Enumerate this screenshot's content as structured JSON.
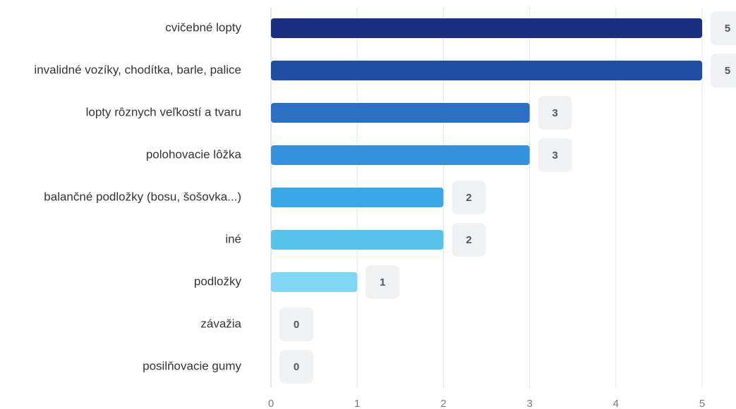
{
  "chart_data": {
    "type": "bar",
    "orientation": "horizontal",
    "categories": [
      "cvičebné lopty",
      "invalidné vozíky, chodítka, barle, palice",
      "lopty rôznych veľkostí a tvaru",
      "polohovacie lôžka",
      "balančné podložky (bosu, šošovka...)",
      "iné",
      "podložky",
      "závažia",
      "posilňovacie gumy"
    ],
    "values": [
      5,
      5,
      3,
      3,
      2,
      2,
      1,
      0,
      0
    ],
    "colors": [
      "#1b2f82",
      "#1f4ea3",
      "#2a6fc4",
      "#3592dc",
      "#3aa8e5",
      "#57c3ed",
      "#7fd7f3",
      "#8fdcf4",
      "#8fdcf4"
    ],
    "xlim": [
      0,
      5
    ],
    "xticks": [
      0,
      1,
      2,
      3,
      4,
      5
    ],
    "grid": true
  }
}
